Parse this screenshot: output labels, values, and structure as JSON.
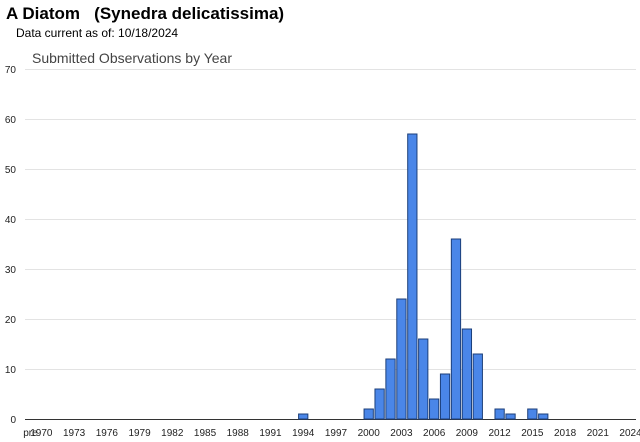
{
  "header": {
    "title": "A Diatom   (Synedra delicatissima)",
    "data_current": "Data current as of: 10/18/2024"
  },
  "chart_data": {
    "type": "bar",
    "title": "Submitted Observations by Year",
    "xlabel": "",
    "ylabel": "",
    "ylim": [
      0,
      70
    ],
    "yticks": [
      0,
      10,
      20,
      30,
      40,
      50,
      60,
      70
    ],
    "x_tick_labels": [
      "pre",
      "1970",
      "1973",
      "1976",
      "1979",
      "1982",
      "1985",
      "1988",
      "1991",
      "1994",
      "1997",
      "2000",
      "2003",
      "2006",
      "2009",
      "2012",
      "2015",
      "2018",
      "2021",
      "2024"
    ],
    "categories": [
      "pre",
      "1970",
      "1971",
      "1972",
      "1973",
      "1974",
      "1975",
      "1976",
      "1977",
      "1978",
      "1979",
      "1980",
      "1981",
      "1982",
      "1983",
      "1984",
      "1985",
      "1986",
      "1987",
      "1988",
      "1989",
      "1990",
      "1991",
      "1992",
      "1993",
      "1994",
      "1995",
      "1996",
      "1997",
      "1998",
      "1999",
      "2000",
      "2001",
      "2002",
      "2003",
      "2004",
      "2005",
      "2006",
      "2007",
      "2008",
      "2009",
      "2010",
      "2011",
      "2012",
      "2013",
      "2014",
      "2015",
      "2016",
      "2017",
      "2018",
      "2019",
      "2020",
      "2021",
      "2022",
      "2023",
      "2024"
    ],
    "values": [
      0,
      0,
      0,
      0,
      0,
      0,
      0,
      0,
      0,
      0,
      0,
      0,
      0,
      0,
      0,
      0,
      0,
      0,
      0,
      0,
      0,
      0,
      0,
      0,
      0,
      1,
      0,
      0,
      0,
      0,
      0,
      2,
      6,
      12,
      24,
      57,
      16,
      4,
      9,
      36,
      18,
      13,
      0,
      2,
      1,
      0,
      2,
      1,
      0,
      0,
      0,
      0,
      0,
      0,
      0,
      0
    ],
    "bar_color": "#4a86e8",
    "bar_edge_color": "#1c3f7a",
    "grid": true
  }
}
